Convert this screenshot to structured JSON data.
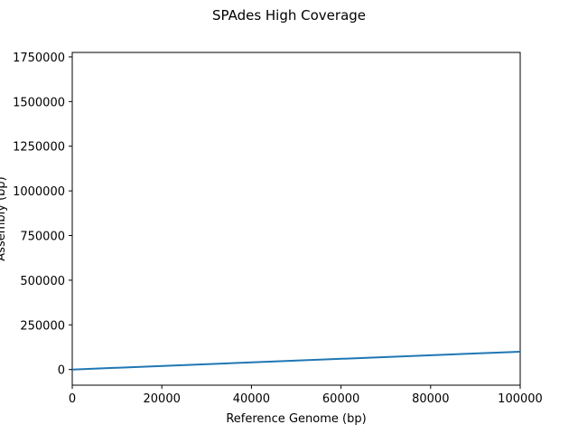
{
  "chart_data": {
    "type": "line",
    "title": "SPAdes High Coverage",
    "xlabel": "Reference Genome (bp)",
    "ylabel": "Assembly (bp)",
    "xlim": [
      0,
      100000
    ],
    "ylim": [
      -87500,
      1775000
    ],
    "x_ticks": [
      0,
      20000,
      40000,
      60000,
      80000,
      100000
    ],
    "y_ticks": [
      0,
      250000,
      500000,
      750000,
      1000000,
      1250000,
      1500000,
      1750000
    ],
    "grid": false,
    "series": [
      {
        "color": "#1f77b4",
        "x": [
          0,
          100000
        ],
        "y": [
          0,
          100000
        ]
      }
    ]
  }
}
